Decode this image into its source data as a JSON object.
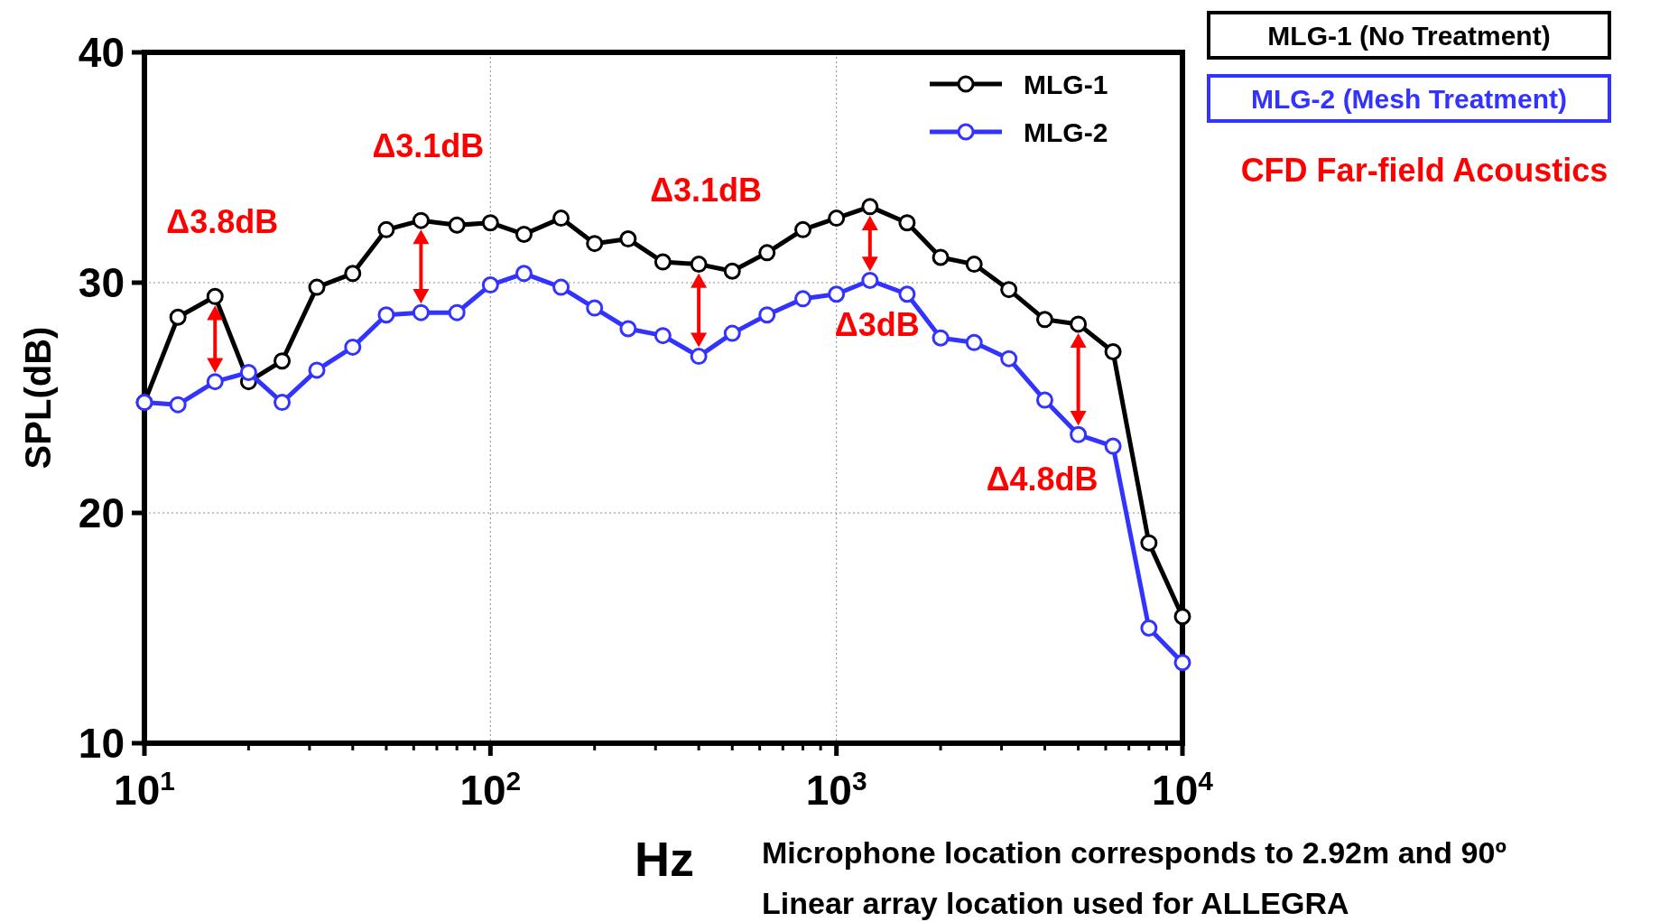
{
  "chart_data": {
    "type": "line",
    "title": "CFD Far-field Acoustics",
    "xlabel": "Hz",
    "ylabel": "SPL(dB)",
    "log": "x",
    "x": [
      10,
      12.5,
      16,
      20,
      25,
      31.5,
      40,
      50,
      63,
      80,
      100,
      125,
      160,
      200,
      250,
      315,
      400,
      500,
      630,
      800,
      1000,
      1250,
      1600,
      2000,
      2500,
      3150,
      4000,
      5000,
      6300,
      8000,
      10000
    ],
    "series": [
      {
        "name": "MLG-1",
        "color": "#000000",
        "values": [
          24.8,
          28.5,
          29.4,
          25.7,
          26.6,
          29.8,
          30.4,
          32.3,
          32.7,
          32.5,
          32.6,
          32.1,
          32.8,
          31.7,
          31.9,
          30.9,
          30.8,
          30.5,
          31.3,
          32.3,
          32.8,
          33.3,
          32.6,
          31.1,
          30.8,
          29.7,
          28.4,
          28.2,
          27.0,
          18.7,
          15.5
        ]
      },
      {
        "name": "MLG-2",
        "color": "#3333ff",
        "values": [
          24.8,
          24.7,
          25.7,
          26.1,
          24.8,
          26.2,
          27.2,
          28.6,
          28.7,
          28.7,
          29.9,
          30.4,
          29.8,
          28.9,
          28.0,
          27.7,
          26.8,
          27.8,
          28.6,
          29.3,
          29.5,
          30.1,
          29.5,
          27.6,
          27.4,
          26.7,
          24.9,
          23.4,
          22.9,
          15.0,
          13.5
        ]
      }
    ],
    "xlim": [
      10,
      10000
    ],
    "ylim": [
      10,
      40
    ],
    "xticks": [
      {
        "value": 10,
        "label": "10$^{1}$"
      },
      {
        "value": 100,
        "label": "10$^{2}$"
      },
      {
        "value": 1000,
        "label": "10$^{3}$"
      },
      {
        "value": 10000,
        "label": "10$^{4}$"
      }
    ],
    "yticks": [
      10,
      20,
      30,
      40
    ],
    "grid": true,
    "legend": "top right",
    "marker": "circle",
    "line_style": "solid",
    "annotations": [
      "MLG-1 (No Treatment)",
      "MLG-2 (Mesh Treatment)",
      "Microphone location corresponds to 2.92m and 90º",
      "Linear array location used for ALLEGRA",
      {
        "text": "Δ3.8dB",
        "x": 16,
        "y": 29.4
      },
      {
        "text": "Δ3.1dB",
        "x": 63,
        "y": 32.7
      },
      {
        "text": "Δ3.1dB",
        "x": 400,
        "y": 30.8
      },
      {
        "text": "Δ3dB",
        "x": 1250,
        "y": 30.1
      },
      {
        "text": "Δ4.8dB",
        "x": 5000,
        "y": 23.4
      }
    ]
  }
}
